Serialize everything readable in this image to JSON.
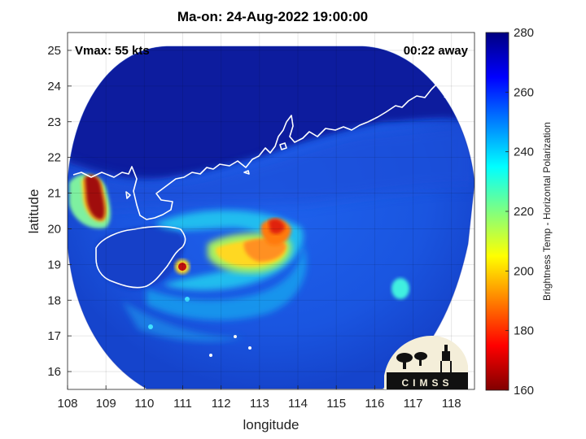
{
  "title": "Ma-on: 24-Aug-2022 19:00:00",
  "annotations": {
    "vmax": "Vmax: 55 kts",
    "time_away": "00:22 away"
  },
  "axes": {
    "xlabel": "longitude",
    "ylabel": "latitude",
    "xlim": [
      108,
      118.6
    ],
    "ylim": [
      15.5,
      25.5
    ],
    "xticks": [
      "108",
      "109",
      "110",
      "111",
      "112",
      "113",
      "114",
      "115",
      "116",
      "117",
      "118"
    ],
    "yticks": [
      "16",
      "17",
      "18",
      "19",
      "20",
      "21",
      "22",
      "23",
      "24",
      "25"
    ],
    "grid": true
  },
  "colorbar": {
    "label": "Brightness Temp - Horizontal Polarization",
    "range": [
      160,
      280
    ],
    "ticks": [
      "160",
      "180",
      "200",
      "220",
      "240",
      "260",
      "280"
    ],
    "colormap": "jet"
  },
  "logo": {
    "text": "CIMSS"
  },
  "colors": {
    "land_dark": "#0a1aa0",
    "sea_blue": "#1a5ce6",
    "cold_red": "#8b0a0a",
    "coastline": "#ffffff"
  }
}
